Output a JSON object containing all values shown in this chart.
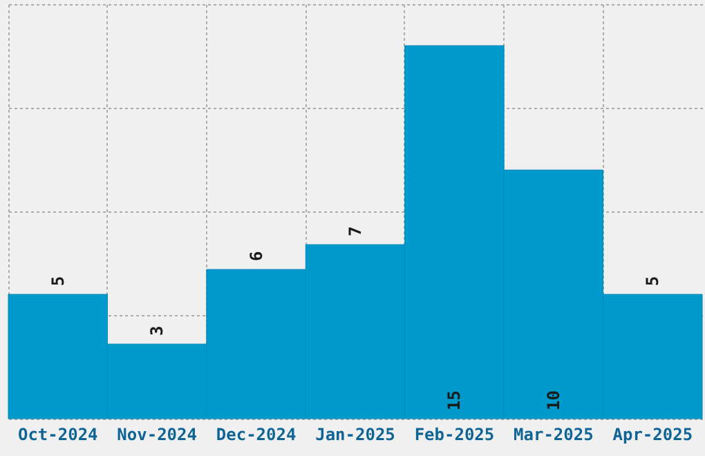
{
  "chart_data": {
    "type": "bar",
    "categories": [
      "Oct-2024",
      "Nov-2024",
      "Dec-2024",
      "Jan-2025",
      "Feb-2025",
      "Mar-2025",
      "Apr-2025"
    ],
    "values": [
      5,
      3,
      6,
      7,
      15,
      10,
      5
    ],
    "color": "#0099cc",
    "data_labels": true,
    "grid": true,
    "tick_labels": "x",
    "ylim": [
      0,
      16.67
    ],
    "yticks": [
      {
        "value": 0,
        "label": null
      },
      {
        "value": 4.17,
        "label": null
      },
      {
        "value": 8.33,
        "label": null
      },
      {
        "value": 12.5,
        "label": null
      },
      {
        "value": 16.67,
        "label": null
      }
    ]
  }
}
